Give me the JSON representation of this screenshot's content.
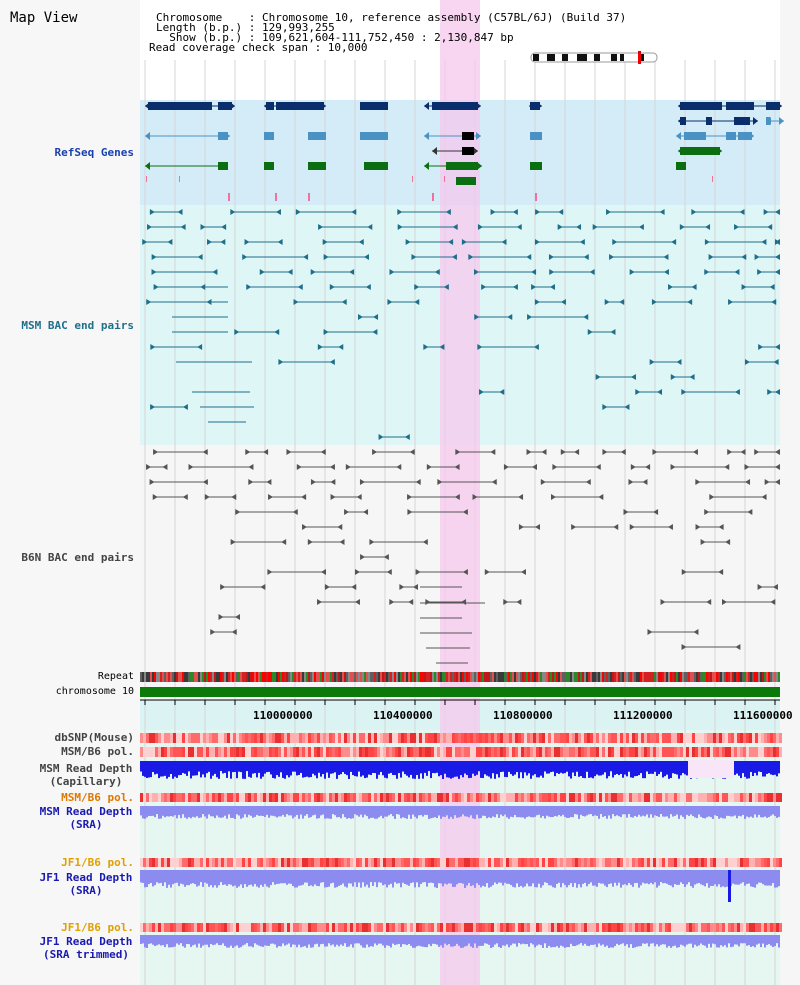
{
  "view_title": "Map View",
  "header": {
    "chromosome": "Chromosome    : Chromosome 10, reference assembly (C57BL/6J) (Build 37)",
    "length": "Length (b.p.) : 129,993,255",
    "show": "  Show (b.p.) : 109,621,604-111,752,450 : 2,130,847 bp",
    "coverage": "Read coverage check span : 10,000"
  },
  "tracks": {
    "refseq": "RefSeq Genes",
    "msm_bac": "MSM BAC end pairs",
    "b6n_bac": "B6N BAC end pairs",
    "repeat": "Repeat",
    "chromosome": "chromosome 10",
    "dbsnp": "dbSNP(Mouse)",
    "msm_b6_pol": "MSM/B6 pol.",
    "msm_depth_cap_1": "MSM Read Depth",
    "msm_depth_cap_2": "(Capillary)",
    "msm_b6_pol_2": "MSM/B6 pol.",
    "msm_depth_sra_1": "MSM Read Depth",
    "msm_depth_sra_2": "(SRA)",
    "jf1_b6_pol": "JF1/B6 pol.",
    "jf1_depth_sra_1": "JF1 Read Depth",
    "jf1_depth_sra_2": "(SRA)",
    "jf1_b6_pol_2": "JF1/B6 pol.",
    "jf1_depth_trim_1": "JF1 Read Depth",
    "jf1_depth_trim_2": "(SRA trimmed)"
  },
  "axis": {
    "ticks": [
      "110000000",
      "110400000",
      "110800000",
      "111200000",
      "111600000"
    ]
  },
  "colors": {
    "refseq_dark": "#0a2d6b",
    "refseq_mid": "#4a92c4",
    "refseq_green": "#0b6e10",
    "msm_bac": "#1f6f8b",
    "b6n_bac": "#555555",
    "highlight": "#f5c8ee",
    "depth_blue": "#1a1ae6",
    "depth_light": "#8c8cf0"
  }
}
